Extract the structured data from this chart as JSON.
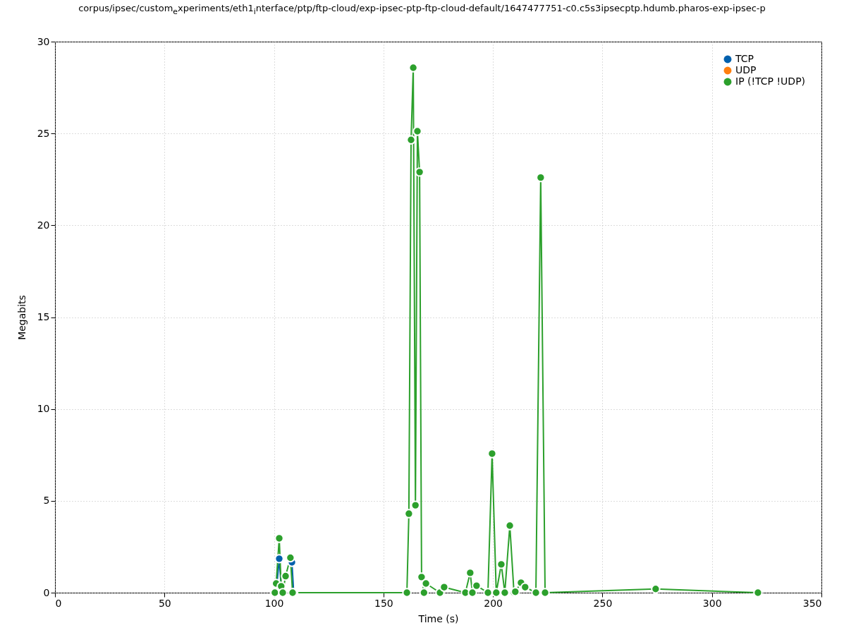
{
  "chart_data": {
    "type": "line",
    "title": "corpus/ipsec/custom$_{e}$xperiments/eth1$_{i}$nterface/ptp/ftp-cloud/exp-ipsec-ptp-ftp-cloud-default/1647477751-c0.c5s3ipsecptp.hdumb.pharos-exp-ipsec-p",
    "xlabel": "Time (s)",
    "ylabel": "Megabits",
    "xlim": [
      0,
      350
    ],
    "xticks": [
      0,
      50,
      100,
      150,
      200,
      250,
      300,
      350
    ],
    "ylim": [
      0,
      30
    ],
    "yticks": [
      0,
      5,
      10,
      15,
      20,
      25,
      30
    ],
    "grid": true,
    "legend": "top right",
    "marker": "circle",
    "line_style": "solid",
    "series": [
      {
        "name": "TCP",
        "color": "#0060ad",
        "x": [
          101,
          102.4,
          103.3,
          105.3,
          108.2,
          109
        ],
        "values": [
          0,
          1.85,
          0.3,
          null,
          1.65,
          0
        ]
      },
      {
        "name": "UDP",
        "color": "#ff7f0e"
      },
      {
        "name": "IP (!TCP  !UDP)",
        "color": "#2ca02c",
        "x": [
          100.4,
          101,
          102.4,
          103.3,
          104,
          105.3,
          107.5,
          108.5,
          160.7,
          161.6,
          162.6,
          163.6,
          164.6,
          165.5,
          166.5,
          167.4,
          168.5,
          169.4,
          175.8,
          177.7,
          187.4,
          189.6,
          190.6,
          192.5,
          197.7,
          199.6,
          201.5,
          203.8,
          205.4,
          207.7,
          209.6,
          210.2,
          212.8,
          214.7,
          219.6,
          221.8,
          223.8,
          274.3,
          321
        ],
        "values": [
          0,
          0.5,
          2.96,
          0.35,
          0,
          0.9,
          1.9,
          0,
          0,
          4.3,
          24.65,
          28.58,
          4.76,
          25.12,
          22.9,
          0.85,
          0,
          0.5,
          0,
          0.3,
          0,
          1.08,
          0,
          0.38,
          0,
          7.57,
          0,
          1.54,
          0,
          3.65,
          0,
          0.05,
          0.54,
          0.3,
          0,
          22.6,
          0,
          0.2,
          0
        ]
      }
    ]
  }
}
